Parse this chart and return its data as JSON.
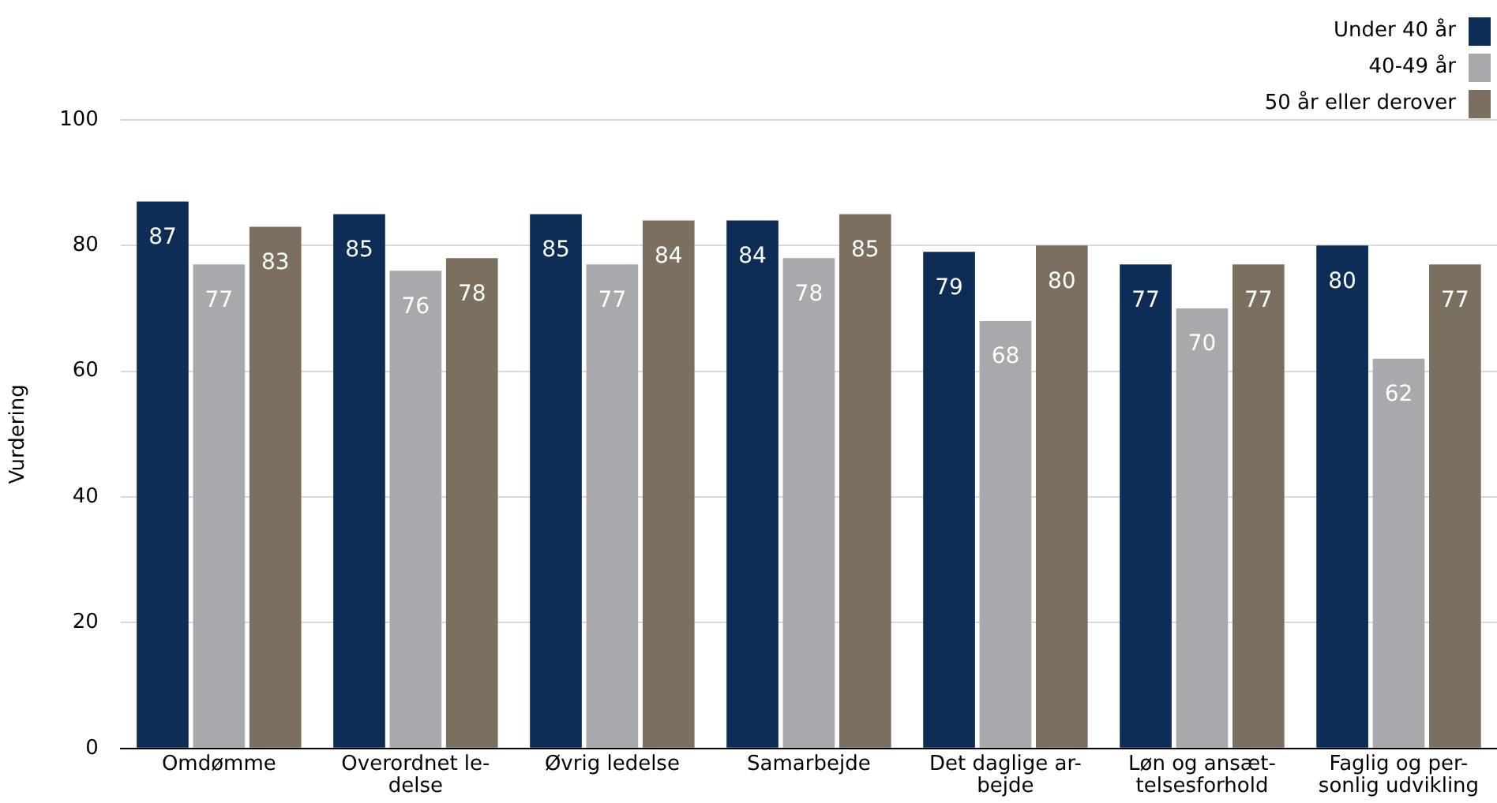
{
  "chart_data": {
    "type": "bar",
    "ylabel": "Vurdering",
    "categories": [
      "Omdømme",
      "Overordnet le-\ndelse",
      "Øvrig ledelse",
      "Samarbejde",
      "Det daglige ar-\nbejde",
      "Løn og ansæt-\ntelsesforhold",
      "Faglig og per-\nsonlig udvikling"
    ],
    "series": [
      {
        "name": "Under 40 år",
        "color": "#0d2d57",
        "values": [
          87,
          85,
          85,
          84,
          79,
          77,
          80
        ]
      },
      {
        "name": "40-49 år",
        "color": "#a7a9ad",
        "values": [
          77,
          76,
          77,
          78,
          68,
          70,
          62
        ]
      },
      {
        "name": "50 år eller derover",
        "color": "#7b7060",
        "values": [
          83,
          78,
          84,
          85,
          80,
          77,
          77
        ]
      }
    ],
    "ylim": [
      0,
      100
    ],
    "yticks": [
      0,
      20,
      40,
      60,
      80,
      100
    ],
    "grid": "y",
    "legend": "top right",
    "data_labels": true
  }
}
